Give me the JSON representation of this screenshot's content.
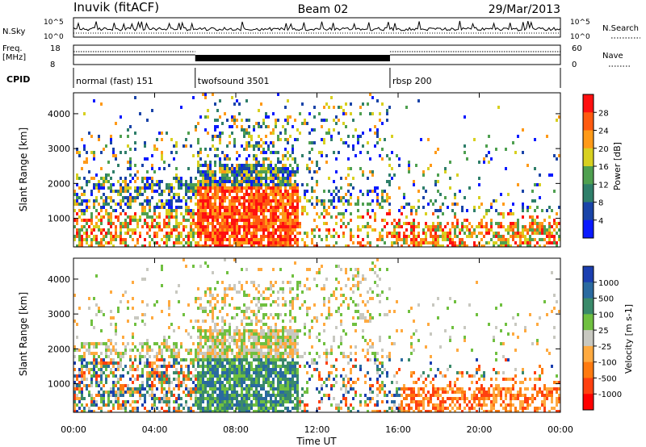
{
  "header": {
    "station": "Inuvik (fitACF)",
    "beam": "Beam 02",
    "date": "29/Mar/2013"
  },
  "strips": {
    "nsky": {
      "label": "N.Sky",
      "tick_top": "10^5",
      "tick_bottom": "10^0",
      "right_label": "N.Search",
      "right_tick_top": "10^5",
      "right_tick_bottom": "10^0"
    },
    "freq": {
      "label_top": "Freq.",
      "label_bottom": "[MHz]",
      "tick_top": "18",
      "tick_bottom": "8",
      "right_label": "Nave",
      "right_tick_top": "60",
      "right_tick_bottom": "0"
    },
    "cpid": {
      "label": "CPID",
      "segments": [
        {
          "name": "normal (fast) 151",
          "start_hour": 0,
          "end_hour": 6.0
        },
        {
          "name": "twofsound 3501",
          "start_hour": 6.0,
          "end_hour": 15.6
        },
        {
          "name": "rbsp 200",
          "start_hour": 15.6,
          "end_hour": 24
        }
      ]
    }
  },
  "axes": {
    "xlabel": "Time UT",
    "xticks": [
      "00:00",
      "04:00",
      "08:00",
      "12:00",
      "16:00",
      "20:00",
      "00:00"
    ],
    "xtick_hours": [
      0,
      4,
      8,
      12,
      16,
      20,
      24
    ],
    "ylabel": "Slant Range [km]",
    "yticks": [
      1000,
      2000,
      3000,
      4000
    ],
    "ylim": [
      180,
      4600
    ]
  },
  "chart_data": [
    {
      "type": "heatmap",
      "title": "",
      "quantity": "Power [dB]",
      "x_range_hours": [
        0,
        24
      ],
      "y_range_km": [
        180,
        4600
      ],
      "colorbar": {
        "label": "Power [dB]",
        "ticks": [
          "4",
          "8",
          "12",
          "16",
          "20",
          "24",
          "28"
        ],
        "colors": [
          "#0a1aff",
          "#1a44a8",
          "#2f7f6a",
          "#4fa050",
          "#d8d020",
          "#ff9a18",
          "#ff5a10",
          "#ff1010"
        ]
      }
    },
    {
      "type": "heatmap",
      "title": "",
      "quantity": "Velocity [m s^-1]",
      "x_range_hours": [
        0,
        24
      ],
      "y_range_km": [
        180,
        4600
      ],
      "colorbar": {
        "label": "Velocity [m s-1]",
        "ticks": [
          "1000",
          "500",
          "100",
          "25",
          "-25",
          "-100",
          "-500",
          "-1000"
        ],
        "colors": [
          "#1b3fb0",
          "#2a6aa0",
          "#3a8a6a",
          "#70c040",
          "#c8c8c0",
          "#ffaa40",
          "#ff7a10",
          "#ff4010",
          "#ff0000"
        ]
      }
    }
  ]
}
